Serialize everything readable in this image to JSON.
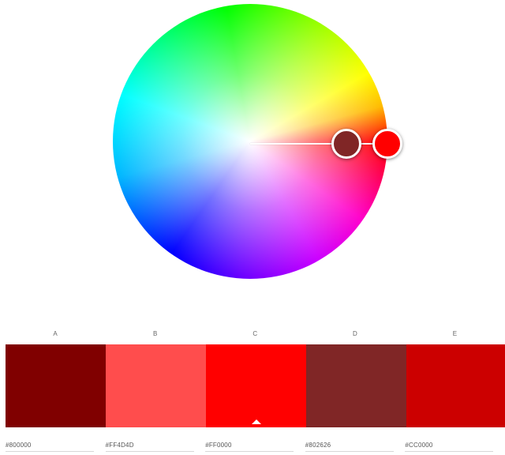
{
  "wheel": {
    "base_color": "#FF0000",
    "selected_color": "#802626"
  },
  "swatches": [
    {
      "label": "A",
      "hex": "#800000",
      "color": "#800000",
      "active": false
    },
    {
      "label": "B",
      "hex": "#FF4D4D",
      "color": "#FF4D4D",
      "active": false
    },
    {
      "label": "C",
      "hex": "#FF0000",
      "color": "#FF0000",
      "active": true
    },
    {
      "label": "D",
      "hex": "#802626",
      "color": "#802626",
      "active": false
    },
    {
      "label": "E",
      "hex": "#CC0000",
      "color": "#CC0000",
      "active": false
    }
  ]
}
